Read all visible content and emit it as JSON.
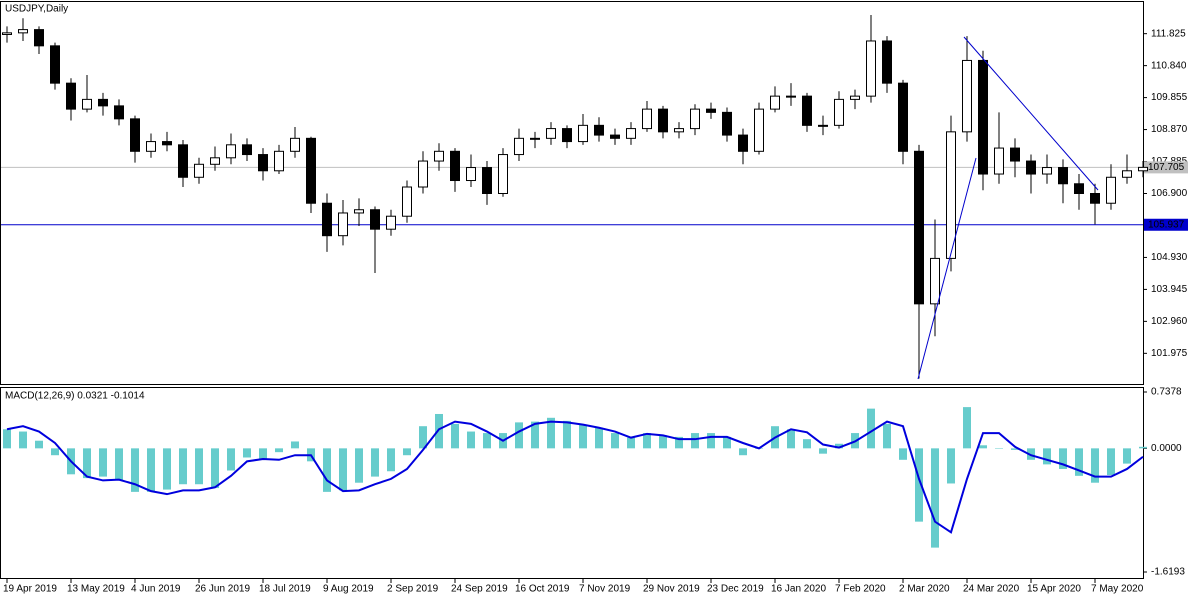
{
  "chart_data": [
    {
      "type": "candlestick",
      "title": "USDJPY,Daily",
      "categories": [
        "19 Apr 2019",
        null,
        null,
        null,
        "13 May 2019",
        null,
        null,
        null,
        "4 Jun 2019",
        null,
        null,
        null,
        "26 Jun 2019",
        null,
        null,
        null,
        "18 Jul 2019",
        null,
        null,
        null,
        "9 Aug 2019",
        null,
        null,
        null,
        "2 Sep 2019",
        null,
        null,
        null,
        "24 Sep 2019",
        null,
        null,
        null,
        "16 Oct 2019",
        null,
        null,
        null,
        "7 Nov 2019",
        null,
        null,
        null,
        "29 Nov 2019",
        null,
        null,
        null,
        "23 Dec 2019",
        null,
        null,
        null,
        "16 Jan 2020",
        null,
        null,
        null,
        "7 Feb 2020",
        null,
        null,
        null,
        "2 Mar 2020",
        null,
        null,
        null,
        "24 Mar 2020",
        null,
        null,
        null,
        "15 Apr 2020",
        null,
        null,
        null,
        "7 May 2020",
        null,
        null,
        null
      ],
      "open": [
        111.8,
        111.85,
        111.95,
        111.45,
        110.3,
        109.5,
        109.8,
        109.6,
        109.2,
        108.2,
        108.5,
        108.4,
        107.4,
        107.8,
        108.0,
        108.4,
        108.1,
        107.6,
        108.2,
        108.6,
        106.6,
        105.6,
        106.3,
        106.4,
        105.8,
        106.2,
        107.1,
        107.9,
        108.2,
        107.3,
        107.7,
        106.9,
        108.1,
        108.6,
        108.6,
        108.9,
        108.5,
        109.0,
        108.7,
        108.6,
        108.9,
        109.5,
        108.8,
        108.9,
        109.5,
        109.4,
        108.7,
        108.2,
        109.5,
        109.9,
        109.9,
        109.0,
        109.0,
        109.8,
        109.9,
        111.6,
        110.3,
        108.2,
        103.5,
        104.9,
        108.8,
        111.0,
        107.5,
        108.3,
        107.9,
        107.5,
        107.7,
        107.2,
        106.9,
        106.6,
        107.4,
        107.6
      ],
      "high": [
        112.05,
        112.3,
        112.05,
        111.55,
        110.45,
        110.55,
        110.0,
        109.8,
        109.3,
        108.75,
        108.8,
        108.55,
        108.0,
        108.35,
        108.75,
        108.6,
        108.3,
        108.4,
        108.95,
        108.65,
        106.9,
        106.7,
        106.75,
        106.5,
        106.4,
        107.3,
        108.2,
        108.45,
        108.3,
        108.1,
        107.9,
        108.3,
        108.9,
        108.8,
        109.1,
        109.0,
        109.35,
        109.25,
        108.9,
        109.1,
        109.75,
        109.6,
        109.1,
        109.65,
        109.7,
        109.55,
        108.9,
        109.7,
        110.2,
        110.3,
        110.0,
        109.3,
        110.05,
        110.1,
        112.4,
        111.75,
        110.4,
        108.4,
        106.1,
        109.3,
        111.75,
        111.3,
        109.4,
        108.6,
        108.1,
        108.1,
        107.95,
        107.5,
        107.2,
        107.8,
        108.1,
        107.9
      ],
      "low": [
        111.55,
        111.6,
        111.2,
        110.1,
        109.15,
        109.4,
        109.3,
        109.0,
        107.85,
        108.0,
        108.2,
        107.1,
        107.2,
        107.6,
        107.8,
        107.9,
        107.3,
        107.5,
        108.0,
        106.3,
        105.1,
        105.3,
        105.9,
        104.45,
        105.6,
        106.0,
        106.9,
        107.6,
        106.95,
        107.1,
        106.55,
        106.8,
        107.9,
        108.3,
        108.4,
        108.3,
        108.4,
        108.5,
        108.4,
        108.4,
        108.8,
        108.6,
        108.6,
        108.7,
        109.2,
        108.5,
        107.8,
        108.1,
        109.4,
        109.6,
        108.8,
        108.7,
        108.9,
        109.5,
        109.7,
        110.0,
        107.8,
        101.2,
        102.5,
        104.5,
        108.5,
        107.0,
        107.2,
        107.4,
        106.9,
        107.2,
        106.6,
        106.4,
        105.95,
        106.4,
        107.2,
        107.4
      ],
      "close": [
        111.85,
        111.95,
        111.45,
        110.3,
        109.5,
        109.8,
        109.6,
        109.2,
        108.2,
        108.5,
        108.4,
        107.4,
        107.8,
        108.0,
        108.4,
        108.1,
        107.6,
        108.2,
        108.6,
        106.6,
        105.6,
        106.3,
        106.4,
        105.8,
        106.2,
        107.1,
        107.9,
        108.2,
        107.3,
        107.7,
        106.9,
        108.1,
        108.6,
        108.6,
        108.9,
        108.5,
        109.0,
        108.7,
        108.6,
        108.9,
        109.5,
        108.8,
        108.9,
        109.5,
        109.4,
        108.7,
        108.2,
        109.5,
        109.9,
        109.9,
        109.0,
        109.0,
        109.8,
        109.9,
        111.6,
        110.3,
        108.2,
        103.5,
        104.9,
        108.8,
        111.0,
        107.5,
        108.3,
        107.9,
        107.5,
        107.7,
        107.2,
        106.9,
        106.6,
        107.4,
        107.6,
        107.705
      ],
      "ylim": [
        101.03,
        112.77
      ],
      "yticks": [
        111.825,
        {
          "value": 110.84,
          "label": "110.840"
        },
        109.855,
        {
          "value": 108.87,
          "label": "108.870"
        },
        107.885,
        {
          "value": 106.9,
          "label": "106.900"
        },
        {
          "value": 104.93,
          "label": "104.930"
        },
        103.945,
        {
          "value": 102.96,
          "label": "102.960"
        },
        101.975
      ],
      "current_price": 107.705,
      "current_price_color": "#c0c0c0",
      "level": 105.937,
      "level_color": "#0000cc",
      "up_color": "#ffffff",
      "down_color": "#000000"
    },
    {
      "type": "macd",
      "title": "MACD(12,26,9) 0.0321 -0.1014",
      "histogram": {
        "color": "#66cccc",
        "values": [
          0.25,
          0.22,
          0.1,
          -0.09,
          -0.34,
          -0.39,
          -0.37,
          -0.42,
          -0.57,
          -0.57,
          -0.54,
          -0.47,
          -0.47,
          -0.52,
          -0.29,
          -0.12,
          -0.15,
          -0.05,
          0.09,
          -0.17,
          -0.57,
          -0.55,
          -0.45,
          -0.37,
          -0.3,
          -0.09,
          0.29,
          0.45,
          0.32,
          0.22,
          0.2,
          0.2,
          0.34,
          0.35,
          0.4,
          0.36,
          0.31,
          0.27,
          0.2,
          0.14,
          0.2,
          0.17,
          0.15,
          0.2,
          0.2,
          0.15,
          -0.09,
          0.0,
          0.29,
          0.25,
          0.12,
          -0.07,
          0.06,
          0.2,
          0.52,
          0.32,
          -0.15,
          -0.96,
          -1.3,
          -0.46,
          0.54,
          0.04,
          0.0,
          -0.02,
          -0.15,
          -0.21,
          -0.27,
          -0.36,
          -0.45,
          -0.35,
          -0.2,
          0.02
        ]
      },
      "signal": {
        "color": "#0000dd",
        "values": [
          0.25,
          0.29,
          0.22,
          0.07,
          -0.17,
          -0.37,
          -0.42,
          -0.41,
          -0.47,
          -0.56,
          -0.6,
          -0.55,
          -0.55,
          -0.51,
          -0.36,
          -0.17,
          -0.14,
          -0.15,
          -0.09,
          -0.09,
          -0.42,
          -0.56,
          -0.55,
          -0.47,
          -0.4,
          -0.27,
          -0.02,
          0.25,
          0.35,
          0.32,
          0.22,
          0.1,
          0.22,
          0.32,
          0.35,
          0.34,
          0.31,
          0.27,
          0.22,
          0.14,
          0.19,
          0.17,
          0.12,
          0.12,
          0.15,
          0.15,
          0.07,
          0.0,
          0.14,
          0.25,
          0.21,
          0.05,
          0.01,
          0.09,
          0.22,
          0.35,
          0.29,
          -0.4,
          -0.96,
          -1.1,
          -0.4,
          0.2,
          0.2,
          0.02,
          -0.09,
          -0.15,
          -0.21,
          -0.29,
          -0.37,
          -0.37,
          -0.27,
          -0.11
        ]
      },
      "ylim": [
        -1.6193,
        0.7378
      ],
      "yticks": [
        0.7378,
        {
          "value": 0,
          "label": "0.0000"
        },
        -1.6193
      ]
    }
  ]
}
